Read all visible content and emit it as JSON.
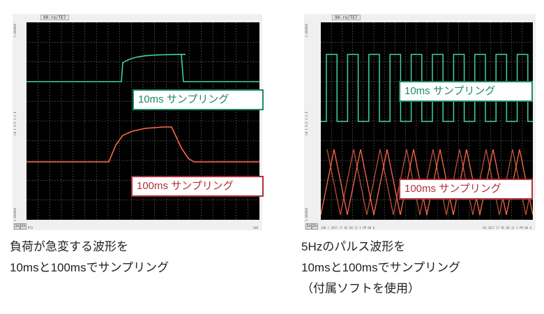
{
  "left_panel": {
    "window_tab": "90-ro/TE7",
    "axis_top": "1.000000",
    "axis_mid": "CH 1 0.5 1.1 E",
    "axis_bottom": "1.000000",
    "footer_btn_1": "1x",
    "footer_btn_2": "2x",
    "footer_left": "RTA",
    "footer_right": "100",
    "label_fast": "10ms サンプリング",
    "label_slow": "100ms サンプリング",
    "caption_line1": "負荷が急変する波形を",
    "caption_line2": "10msと100msでサンプリング",
    "colors": {
      "fast": "#3fd4a0",
      "slow": "#ff6a4a",
      "grid": "#6a6a6a",
      "plot_bg": "#000000"
    }
  },
  "right_panel": {
    "window_tab": "90-ro/TE7",
    "axis_top": "1.000000",
    "axis_mid": "CH 1 0.5 1.1 E",
    "axis_bottom": "1.000000",
    "footer_btn_1": "1x",
    "footer_btn_2": "2x",
    "footer_left": "100 / 2017 17 05 00 11 1 PM 00 0",
    "footer_right": "SD 2017 17 05 00 11 1 PM 00 0",
    "label_fast": "10ms サンプリング",
    "label_slow": "100ms サンプリング",
    "caption_line1": "5Hzのパルス波形を",
    "caption_line2": "10msと100msでサンプリング",
    "caption_line3": "（付属ソフトを使用）",
    "colors": {
      "fast": "#3fd4a0",
      "slow": "#ff6a4a",
      "grid": "#6a6a6a",
      "plot_bg": "#000000"
    }
  }
}
